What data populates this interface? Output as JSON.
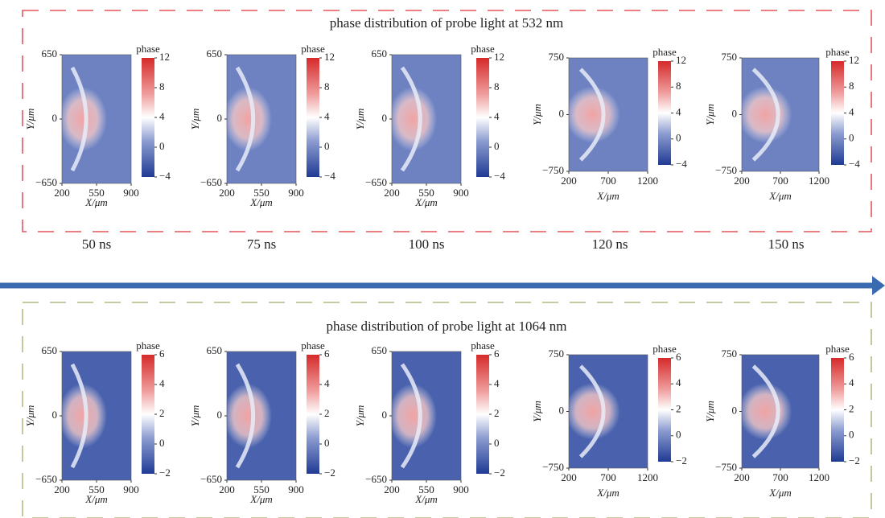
{
  "rows": [
    {
      "title": "phase distribution of probe light at 532 nm",
      "panels": [
        {
          "y_label": "Y/μm",
          "x_label": "X/μm",
          "yticks": [
            "650",
            "0",
            "−650"
          ],
          "xticks": [
            "200",
            "550",
            "900"
          ],
          "colorbar_label": "phase",
          "colorbar_ticks": [
            "12",
            "8",
            "4",
            "0",
            "−4"
          ]
        },
        {
          "y_label": "Y/μm",
          "x_label": "X/μm",
          "yticks": [
            "650",
            "0",
            "−650"
          ],
          "xticks": [
            "200",
            "550",
            "900"
          ],
          "colorbar_label": "phase",
          "colorbar_ticks": [
            "12",
            "8",
            "4",
            "0",
            "−4"
          ]
        },
        {
          "y_label": "Y/μm",
          "x_label": "X/μm",
          "yticks": [
            "650",
            "0",
            "−650"
          ],
          "xticks": [
            "200",
            "550",
            "900"
          ],
          "colorbar_label": "phase",
          "colorbar_ticks": [
            "12",
            "8",
            "4",
            "0",
            "−4"
          ]
        },
        {
          "y_label": "Y/μm",
          "x_label": "X/μm",
          "yticks": [
            "750",
            "0",
            "−750"
          ],
          "xticks": [
            "200",
            "700",
            "1200"
          ],
          "colorbar_label": "phase",
          "colorbar_ticks": [
            "12",
            "8",
            "4",
            "0",
            "−4"
          ]
        },
        {
          "y_label": "Y/μm",
          "x_label": "X/μm",
          "yticks": [
            "750",
            "0",
            "−750"
          ],
          "xticks": [
            "200",
            "700",
            "1200"
          ],
          "colorbar_label": "phase",
          "colorbar_ticks": [
            "12",
            "8",
            "4",
            "0",
            "−4"
          ]
        }
      ]
    },
    {
      "title": "phase distribution of probe light at 1064 nm",
      "panels": [
        {
          "y_label": "Y/μm",
          "x_label": "X/μm",
          "yticks": [
            "650",
            "0",
            "−650"
          ],
          "xticks": [
            "200",
            "550",
            "900"
          ],
          "colorbar_label": "phase",
          "colorbar_ticks": [
            "6",
            "4",
            "2",
            "0",
            "−2"
          ]
        },
        {
          "y_label": "Y/μm",
          "x_label": "X/μm",
          "yticks": [
            "650",
            "0",
            "−650"
          ],
          "xticks": [
            "200",
            "550",
            "900"
          ],
          "colorbar_label": "phase",
          "colorbar_ticks": [
            "6",
            "4",
            "2",
            "0",
            "−2"
          ]
        },
        {
          "y_label": "Y/μm",
          "x_label": "X/μm",
          "yticks": [
            "650",
            "0",
            "−650"
          ],
          "xticks": [
            "200",
            "550",
            "900"
          ],
          "colorbar_label": "phase",
          "colorbar_ticks": [
            "6",
            "4",
            "2",
            "0",
            "−2"
          ]
        },
        {
          "y_label": "Y/μm",
          "x_label": "X/μm",
          "yticks": [
            "750",
            "0",
            "−750"
          ],
          "xticks": [
            "200",
            "700",
            "1200"
          ],
          "colorbar_label": "phase",
          "colorbar_ticks": [
            "6",
            "4",
            "2",
            "0",
            "−2"
          ]
        },
        {
          "y_label": "Y/μm",
          "x_label": "X/μm",
          "yticks": [
            "750",
            "0",
            "−750"
          ],
          "xticks": [
            "200",
            "700",
            "1200"
          ],
          "colorbar_label": "phase",
          "colorbar_ticks": [
            "6",
            "4",
            "2",
            "0",
            "−2"
          ]
        }
      ]
    }
  ],
  "time_labels": [
    "50 ns",
    "75 ns",
    "100 ns",
    "120 ns",
    "150 ns"
  ]
}
